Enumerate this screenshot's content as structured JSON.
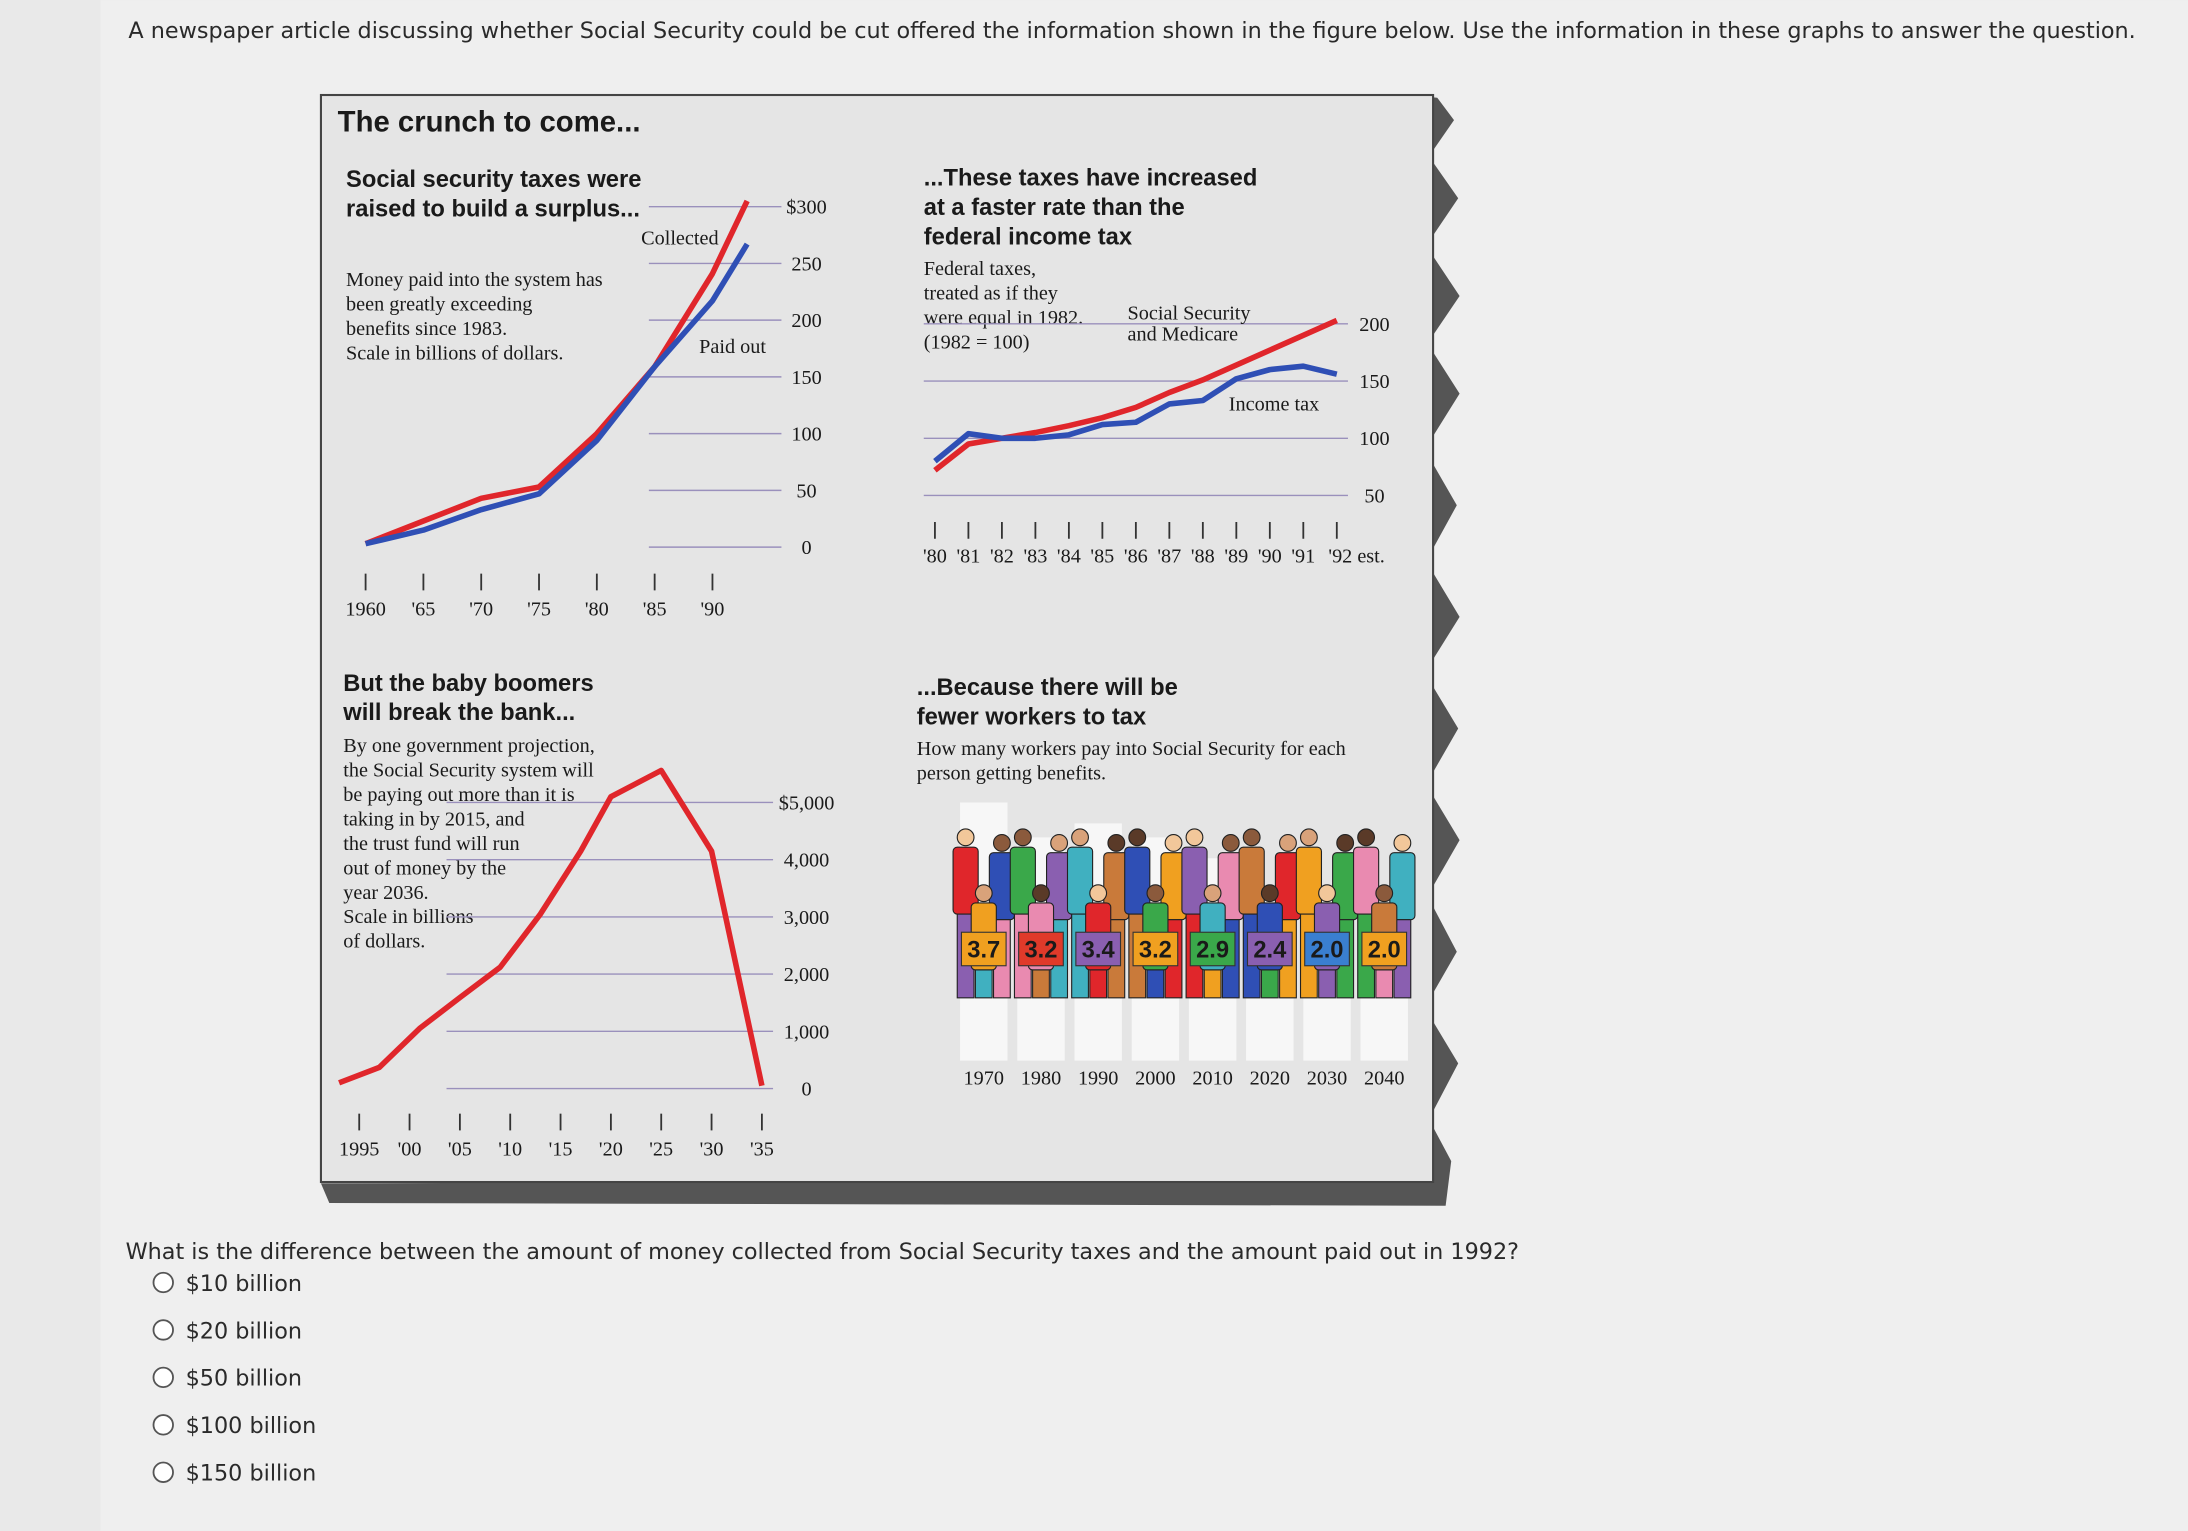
{
  "instructions": "A newspaper article discussing whether Social Security could be cut offered the information shown in the figure below. Use the information in these graphs to answer the question.",
  "figure_title": "The crunch to come...",
  "chart_data": [
    {
      "type": "line",
      "title": [
        "Social security taxes were",
        "raised to build a surplus..."
      ],
      "note": [
        "Money paid into the system has",
        "been greatly exceeding",
        "benefits since 1983.",
        "Scale in billions of dollars."
      ],
      "x": [
        1960,
        1965,
        1970,
        1975,
        1980,
        1985,
        1990,
        1993
      ],
      "series": [
        {
          "name": "Collected",
          "color": "#e0262b",
          "values": [
            3,
            23,
            43,
            53,
            100,
            159,
            241,
            305
          ]
        },
        {
          "name": "Paid out",
          "color": "#2f4fb5",
          "values": [
            3,
            15,
            33,
            47,
            94,
            159,
            217,
            267
          ]
        }
      ],
      "xlim": [
        1960,
        1995
      ],
      "ylim": [
        0,
        300
      ],
      "xticks": [
        1960,
        {
          "value": 1965,
          "label": "'65"
        },
        {
          "value": 1970,
          "label": "'70"
        },
        {
          "value": 1975,
          "label": "'75"
        },
        {
          "value": 1980,
          "label": "'80"
        },
        {
          "value": 1985,
          "label": "'85"
        },
        {
          "value": 1990,
          "label": "'90"
        }
      ],
      "yticks": [
        {
          "value": 300,
          "label": "$300"
        },
        250,
        200,
        150,
        100,
        50,
        0
      ],
      "grid": true
    },
    {
      "type": "line",
      "title": [
        "...These taxes have increased",
        "at a faster rate than the",
        "federal income tax"
      ],
      "note": [
        "Federal taxes,",
        "treated as if they",
        "were equal in 1982.",
        "(1982 = 100)"
      ],
      "x": [
        1980,
        1981,
        1982,
        1983,
        1984,
        1985,
        1986,
        1987,
        1988,
        1989,
        1990,
        1991,
        1992
      ],
      "series": [
        {
          "name": "Social Security and Medicare",
          "color": "#e0262b",
          "values": [
            72,
            95,
            100,
            105,
            111,
            118,
            127,
            140,
            151,
            164,
            177,
            190,
            203
          ]
        },
        {
          "name": "Income tax",
          "color": "#2f4fb5",
          "values": [
            80,
            104,
            100,
            100,
            103,
            112,
            114,
            130,
            133,
            152,
            160,
            163,
            156
          ]
        }
      ],
      "xlim": [
        1980,
        1992
      ],
      "ylim": [
        50,
        200
      ],
      "xticks": [
        {
          "value": 1980,
          "label": "'80"
        },
        {
          "value": 1981,
          "label": "'81"
        },
        {
          "value": 1982,
          "label": "'82"
        },
        {
          "value": 1983,
          "label": "'83"
        },
        {
          "value": 1984,
          "label": "'84"
        },
        {
          "value": 1985,
          "label": "'85"
        },
        {
          "value": 1986,
          "label": "'86"
        },
        {
          "value": 1987,
          "label": "'87"
        },
        {
          "value": 1988,
          "label": "'88"
        },
        {
          "value": 1989,
          "label": "'89"
        },
        {
          "value": 1990,
          "label": "'90"
        },
        {
          "value": 1991,
          "label": "'91"
        },
        {
          "value": 1992,
          "label": "'92 est."
        }
      ],
      "yticks": [
        200,
        150,
        100,
        50
      ],
      "grid": true
    },
    {
      "type": "line",
      "title": [
        "But the baby boomers",
        "will break the bank..."
      ],
      "note": [
        "By one government projection,",
        "the Social Security system will",
        "be paying out more than it is",
        "taking in by 2015, and",
        "the trust fund will run",
        "out of money by the",
        "year 2036.",
        "Scale in billions",
        "of dollars."
      ],
      "x": [
        1993,
        1997,
        2001,
        2005,
        2009,
        2013,
        2017,
        2020,
        2025,
        2030,
        2035
      ],
      "values": [
        100,
        370,
        1050,
        1590,
        2120,
        3050,
        4150,
        5100,
        5560,
        4150,
        50
      ],
      "color": "#e0262b",
      "xlim": [
        1993,
        2035
      ],
      "ylim": [
        0,
        5000
      ],
      "xticks": [
        1995,
        {
          "value": 2000,
          "label": "'00"
        },
        {
          "value": 2005,
          "label": "'05"
        },
        {
          "value": 2010,
          "label": "'10"
        },
        {
          "value": 2015,
          "label": "'15"
        },
        {
          "value": 2020,
          "label": "'20"
        },
        {
          "value": 2025,
          "label": "'25"
        },
        {
          "value": 2030,
          "label": "'30"
        },
        {
          "value": 2035,
          "label": "'35"
        }
      ],
      "yticks": [
        {
          "value": 5000,
          "label": "$5,000"
        },
        {
          "value": 4000,
          "label": "4,000"
        },
        {
          "value": 3000,
          "label": "3,000"
        },
        {
          "value": 2000,
          "label": "2,000"
        },
        {
          "value": 1000,
          "label": "1,000"
        },
        0
      ],
      "grid": true
    },
    {
      "type": "pictogram",
      "title": [
        "...Because there will be",
        "fewer workers to tax"
      ],
      "note": [
        "How many workers pay into Social Security for each",
        "person getting benefits."
      ],
      "categories": [
        "1970",
        "1980",
        "1990",
        "2000",
        "2010",
        "2020",
        "2030",
        "2040"
      ],
      "values": [
        3.7,
        3.2,
        3.4,
        3.2,
        2.9,
        2.4,
        2.0,
        2.0
      ],
      "value_labels": [
        "3.7",
        "3.2",
        "3.4",
        "3.2",
        "2.9",
        "2.4",
        "2.0",
        "2.0"
      ],
      "colors": [
        "#f0a020",
        "#e03a2a",
        "#8a5fb0",
        "#f0a020",
        "#3aa84a",
        "#8a5fb0",
        "#3a7fd0",
        "#f0a020"
      ]
    }
  ],
  "question": "What is the difference between the amount of money collected from Social Security taxes and the amount paid out in 1992?",
  "options": [
    "$10 billion",
    "$20 billion",
    "$50 billion",
    "$100 billion",
    "$150 billion"
  ]
}
